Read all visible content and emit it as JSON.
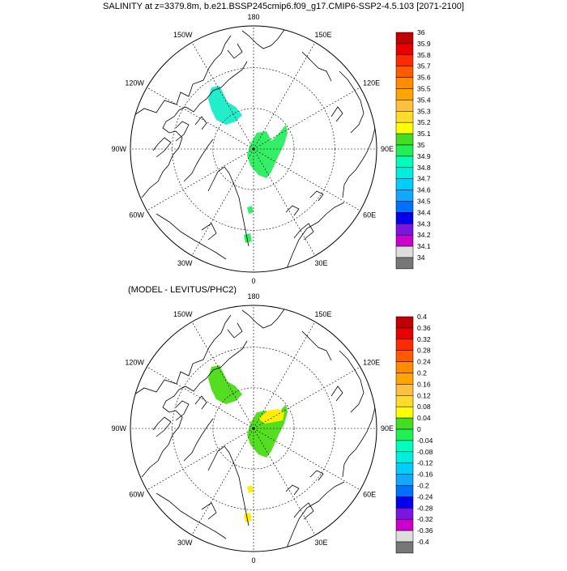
{
  "title": "SALINITY at z=3379.8m, b.e21.BSSP245cmip6.f09_g17.CMIP6-SSP2-4.5.103 [2071-2100]",
  "subtitle": "(MODEL - LEVITUS/PHC2)",
  "meridian_labels": [
    "180",
    "150E",
    "120E",
    "90E",
    "60E",
    "30E",
    "0",
    "30W",
    "60W",
    "90W",
    "120W",
    "150W"
  ],
  "colorbar_top": {
    "labels": [
      "36",
      "35.9",
      "35.8",
      "35.7",
      "35.6",
      "35.5",
      "35.4",
      "35.3",
      "35.2",
      "35.1",
      "35",
      "34.9",
      "34.8",
      "34.7",
      "34.6",
      "34.5",
      "34.4",
      "34.3",
      "34.2",
      "34.1",
      "34"
    ],
    "colors": [
      "#c00000",
      "#e80000",
      "#ff2a00",
      "#ff5a00",
      "#ff8c00",
      "#ffa500",
      "#ffc040",
      "#ffdc2a",
      "#ffff00",
      "#44dd22",
      "#22ee55",
      "#00ffbb",
      "#00eedd",
      "#00ccff",
      "#11a8ff",
      "#0070ff",
      "#0000ee",
      "#7a16e0",
      "#cc00cc",
      "#dddddd",
      "#777777"
    ]
  },
  "colorbar_bottom": {
    "labels": [
      "0.4",
      "0.36",
      "0.32",
      "0.28",
      "0.24",
      "0.2",
      "0.16",
      "0.12",
      "0.08",
      "0.04",
      "0",
      "-0.04",
      "-0.08",
      "-0.12",
      "-0.16",
      "-0.2",
      "-0.24",
      "-0.28",
      "-0.32",
      "-0.36",
      "-0.4"
    ],
    "colors": [
      "#c00000",
      "#e80000",
      "#ff2a00",
      "#ff5a00",
      "#ff8c00",
      "#ffa500",
      "#ffc040",
      "#ffdc2a",
      "#ffff00",
      "#44dd22",
      "#22ee55",
      "#00ffbb",
      "#00eedd",
      "#00ccff",
      "#11a8ff",
      "#0070ff",
      "#0000ee",
      "#7a16e0",
      "#cc00cc",
      "#dddddd",
      "#777777"
    ]
  },
  "fields_top": [
    {
      "name": "beaufort-patch",
      "color": "#22eecc"
    },
    {
      "name": "siberian-basin-patch",
      "color": "#33ee66"
    },
    {
      "name": "fram-strait-patch",
      "color": "#33ee66"
    },
    {
      "name": "greenland-sea-patch",
      "color": "#33ee66"
    }
  ],
  "fields_bottom": [
    {
      "name": "beaufort-patch",
      "color": "#55dd22"
    },
    {
      "name": "siberian-basin-patch",
      "color": "#55dd22"
    },
    {
      "name": "laptev-slope-patch",
      "color": "#ffee00"
    },
    {
      "name": "fram-strait-patch",
      "color": "#ffee00"
    },
    {
      "name": "greenland-sea-patch",
      "color": "#ffee00"
    }
  ]
}
